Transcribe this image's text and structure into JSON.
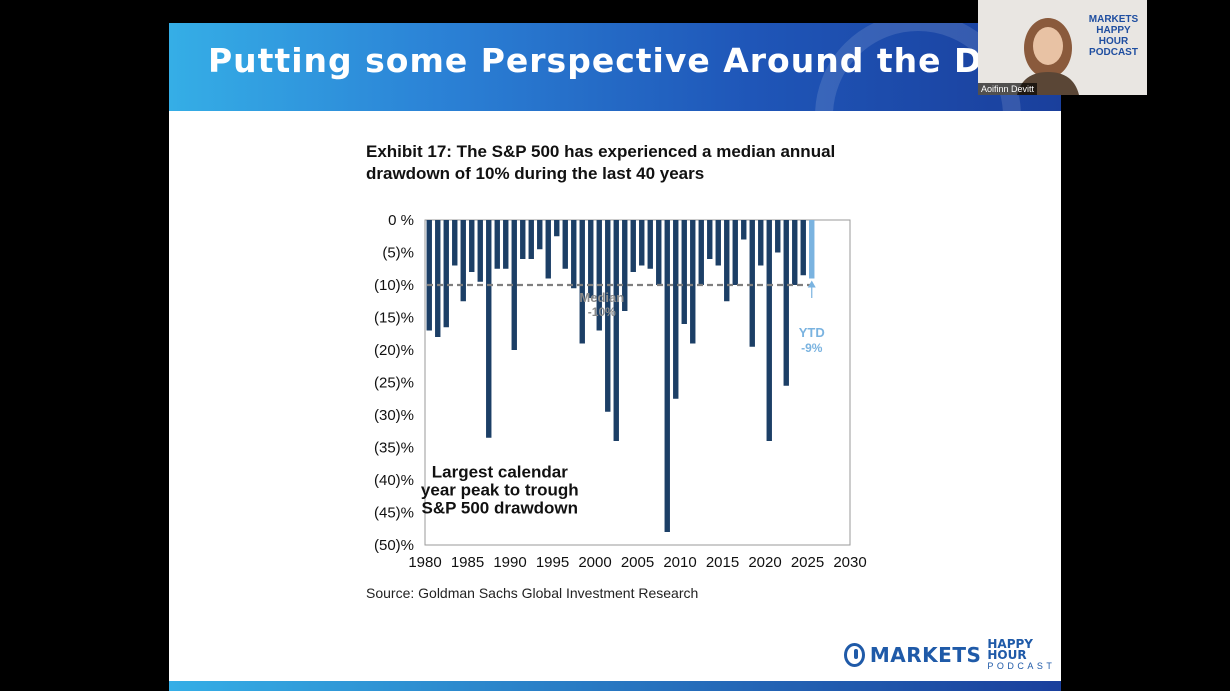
{
  "slide": {
    "title": "Putting some Perspective Around the Drawdown.",
    "exhibit_title": "Exhibit 17: The S&P 500 has experienced a median annual drawdown of 10% during the last 40 years",
    "source": "Source: Goldman Sachs Global Investment Research"
  },
  "logo": {
    "markets": "MARKETS",
    "happy_hour": "HAPPY HOUR",
    "podcast": "PODCAST"
  },
  "webcam": {
    "name": "Aoifinn Devitt",
    "logo_line1": "MARKETS HAPPY",
    "logo_line2": "HOUR PODCAST"
  },
  "colors": {
    "bar": "#1c3f66",
    "ytd_bar": "#7ab3e0",
    "median_line": "#7f7f7f",
    "median_label": "#8a8a8a",
    "ytd_label": "#7ab3e0",
    "banner_start": "#35aee6",
    "banner_end": "#1a3f9c"
  },
  "chart_data": {
    "type": "bar",
    "title": "Exhibit 17: The S&P 500 has experienced a median annual drawdown of 10% during the last 40 years",
    "x": [
      1980,
      1981,
      1982,
      1983,
      1984,
      1985,
      1986,
      1987,
      1988,
      1989,
      1990,
      1991,
      1992,
      1993,
      1994,
      1995,
      1996,
      1997,
      1998,
      1999,
      2000,
      2001,
      2002,
      2003,
      2004,
      2005,
      2006,
      2007,
      2008,
      2009,
      2010,
      2011,
      2012,
      2013,
      2014,
      2015,
      2016,
      2017,
      2018,
      2019,
      2020,
      2021,
      2022,
      2023,
      2024
    ],
    "values": [
      -17,
      -18,
      -16.5,
      -7,
      -12.5,
      -8,
      -9.5,
      -33.5,
      -7.5,
      -7.5,
      -20,
      -6,
      -6,
      -4.5,
      -9,
      -2.5,
      -7.5,
      -10.5,
      -19,
      -12,
      -17,
      -29.5,
      -34,
      -14,
      -8,
      -7,
      -7.5,
      -10,
      -48,
      -27.5,
      -16,
      -19,
      -10,
      -6,
      -7,
      -12.5,
      -10,
      -3,
      -19.5,
      -7,
      -34,
      -5,
      -25.5,
      -10,
      -8.5
    ],
    "ytd": {
      "x": 2025,
      "value": -9,
      "label": "YTD",
      "value_label": "-9%"
    },
    "median": {
      "value": -10,
      "label": "Median",
      "value_label": "-10%"
    },
    "annotation": "Largest calendar year peak to trough S&P 500 drawdown",
    "annotation_lines": [
      "Largest calendar",
      "year peak to trough",
      "S&P 500 drawdown"
    ],
    "xlim": [
      1980,
      2030
    ],
    "ylim": [
      -50,
      0
    ],
    "x_ticks": [
      "1980",
      "1985",
      "1990",
      "1995",
      "2000",
      "2005",
      "2010",
      "2015",
      "2020",
      "2025",
      "2030"
    ],
    "y_ticks": [
      "0 %",
      "(5)%",
      "(10)%",
      "(15)%",
      "(20)%",
      "(25)%",
      "(30)%",
      "(35)%",
      "(40)%",
      "(45)%",
      "(50)%"
    ],
    "grid": false
  }
}
